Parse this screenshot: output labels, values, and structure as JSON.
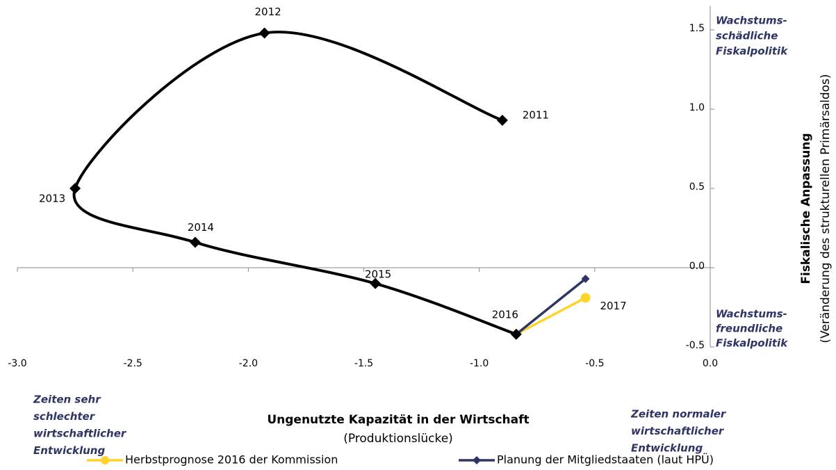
{
  "chart_data": {
    "type": "line",
    "x_title": "Ungenutzte Kapazität in der Wirtschaft",
    "x_subtitle": "(Produktionslücke)",
    "y_title": "Fiskalische Anpassung",
    "y_subtitle": "(Veränderung des strukturellen Primärsaldos)",
    "xlim": [
      -3.0,
      0.0
    ],
    "ylim": [
      -0.5,
      1.65
    ],
    "xticks": [
      {
        "value": -3,
        "label": "-3.0"
      },
      -2.5,
      {
        "value": -2,
        "label": "-2.0"
      },
      -1.5,
      {
        "value": -1,
        "label": "-1.0"
      },
      -0.5,
      {
        "value": 0,
        "label": "0.0"
      }
    ],
    "yticks": [
      -0.5,
      {
        "value": 0,
        "label": "0.0"
      },
      0.5,
      {
        "value": 1,
        "label": "1.0"
      },
      1.5
    ],
    "series": [
      {
        "color": "#000000",
        "smooth": true,
        "marker": "diamond",
        "x": [
          -0.9,
          -1.93,
          -2.75,
          -2.23,
          -1.45,
          -0.84
        ],
        "values": [
          0.93,
          1.48,
          0.5,
          0.16,
          -0.1,
          -0.42
        ],
        "point_labels": [
          "2011",
          "2012",
          "2013",
          "2014",
          "2015",
          "2016"
        ]
      },
      {
        "name": "Herbstprognose 2016 der Kommission",
        "color": "#ffd42a",
        "marker": "circle",
        "x": [
          -0.84,
          -0.54
        ],
        "values": [
          -0.42,
          -0.19
        ],
        "point_labels": [
          null,
          "2017"
        ]
      },
      {
        "name": "Planung der Mitgliedstaaten (laut HPÜ)",
        "color": "#2e3464",
        "marker": "diamond",
        "x": [
          -0.84,
          -0.54
        ],
        "values": [
          -0.42,
          -0.07
        ],
        "point_labels": [
          null,
          null
        ]
      }
    ],
    "annotations": [
      [
        "Wachstums-",
        "schädliche",
        "Fiskalpolitik"
      ],
      [
        "Wachstums-",
        "freundliche",
        "Fiskalpolitik"
      ],
      [
        "Zeiten sehr",
        "schlechter",
        "wirtschaftlicher",
        "Entwicklung"
      ],
      [
        "Zeiten normaler",
        "wirtschaftlicher",
        "Entwicklung"
      ]
    ]
  }
}
